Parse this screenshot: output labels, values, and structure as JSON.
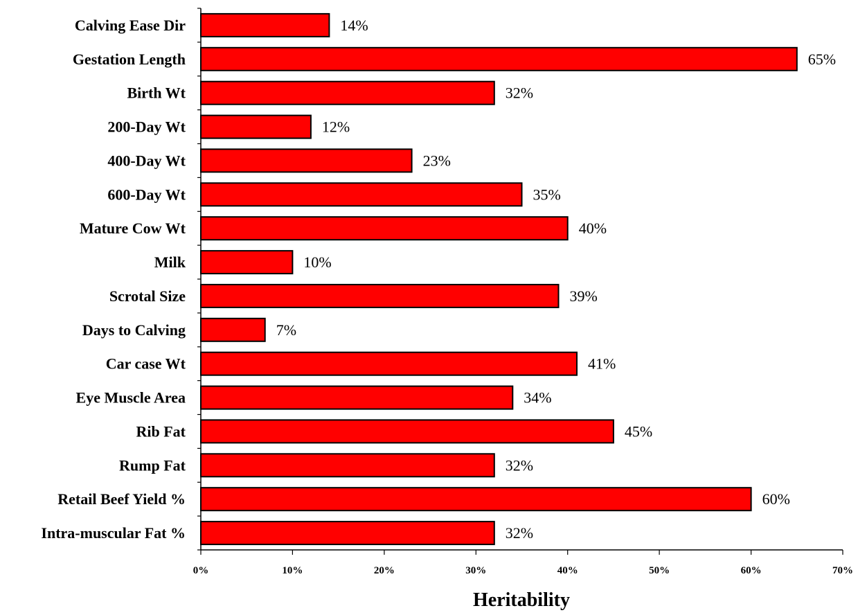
{
  "chart_data": {
    "type": "bar",
    "orientation": "horizontal",
    "categories": [
      "Calving Ease Dir",
      "Gestation Length",
      "Birth Wt",
      "200-Day Wt",
      "400-Day Wt",
      "600-Day Wt",
      "Mature Cow Wt",
      "Milk",
      "Scrotal Size",
      "Days to Calving",
      "Car case Wt",
      "Eye Muscle Area",
      "Rib Fat",
      "Rump Fat",
      "Retail Beef Yield %",
      "Intra-muscular Fat %"
    ],
    "values": [
      14,
      65,
      32,
      12,
      23,
      35,
      40,
      10,
      39,
      7,
      41,
      34,
      45,
      32,
      60,
      32
    ],
    "value_labels": [
      "14%",
      "65%",
      "32%",
      "12%",
      "23%",
      "35%",
      "40%",
      "10%",
      "39%",
      "7%",
      "41%",
      "34%",
      "45%",
      "32%",
      "60%",
      "32%"
    ],
    "xlabel": "Heritability",
    "ylabel": "",
    "title": "",
    "xlim": [
      0,
      70
    ],
    "xticks": [
      0,
      10,
      20,
      30,
      40,
      50,
      60,
      70
    ],
    "xtick_labels": [
      "0%",
      "10%",
      "20%",
      "30%",
      "40%",
      "50%",
      "60%",
      "70%"
    ],
    "grid": false,
    "legend": "none",
    "colors": {
      "bar_fill": "#ff0000",
      "bar_stroke": "#000000",
      "axis": "#000000",
      "text": "#000000"
    }
  }
}
